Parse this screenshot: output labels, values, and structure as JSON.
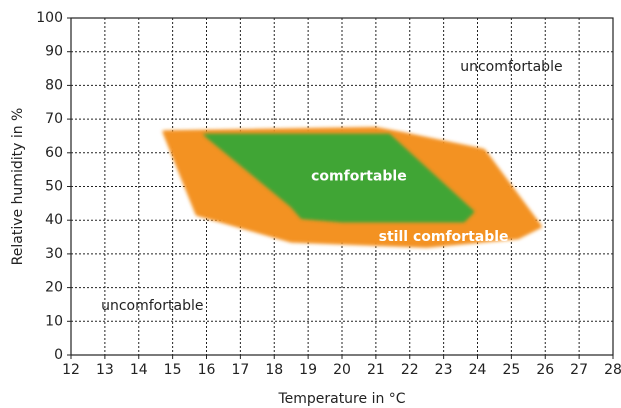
{
  "chart_data": {
    "type": "area",
    "xlabel": "Temperature in °C",
    "ylabel": "Relative humidity in %",
    "xlim": [
      12,
      28
    ],
    "ylim": [
      0,
      100
    ],
    "x_ticks": [
      12,
      13,
      14,
      15,
      16,
      17,
      18,
      19,
      20,
      21,
      22,
      23,
      24,
      25,
      26,
      27,
      28
    ],
    "y_ticks": [
      0,
      10,
      20,
      30,
      40,
      50,
      60,
      70,
      80,
      90,
      100
    ],
    "grid": true,
    "regions": [
      {
        "label": "still comfortable",
        "color": "#F39224",
        "text_color": "#ffffff",
        "polygon": [
          [
            14.7,
            66.5
          ],
          [
            21.0,
            67.5
          ],
          [
            21.8,
            66.0
          ],
          [
            24.2,
            61.0
          ],
          [
            25.9,
            38.0
          ],
          [
            25.2,
            34.5
          ],
          [
            22.5,
            32.0
          ],
          [
            18.5,
            33.5
          ],
          [
            15.7,
            41.5
          ]
        ],
        "label_pos": [
          23.0,
          35.0
        ]
      },
      {
        "label": "comfortable",
        "color": "#3FA535",
        "text_color": "#ffffff",
        "polygon": [
          [
            15.9,
            65.5
          ],
          [
            21.4,
            65.5
          ],
          [
            23.9,
            42.5
          ],
          [
            23.6,
            39.5
          ],
          [
            20.0,
            39.5
          ],
          [
            18.8,
            40.5
          ],
          [
            18.5,
            44.0
          ]
        ],
        "label_pos": [
          20.5,
          53.0
        ]
      }
    ],
    "annotations": [
      {
        "text": "uncomfortable",
        "x": 25.0,
        "y": 85.5
      },
      {
        "text": "uncomfortable",
        "x": 14.4,
        "y": 14.5
      }
    ]
  }
}
